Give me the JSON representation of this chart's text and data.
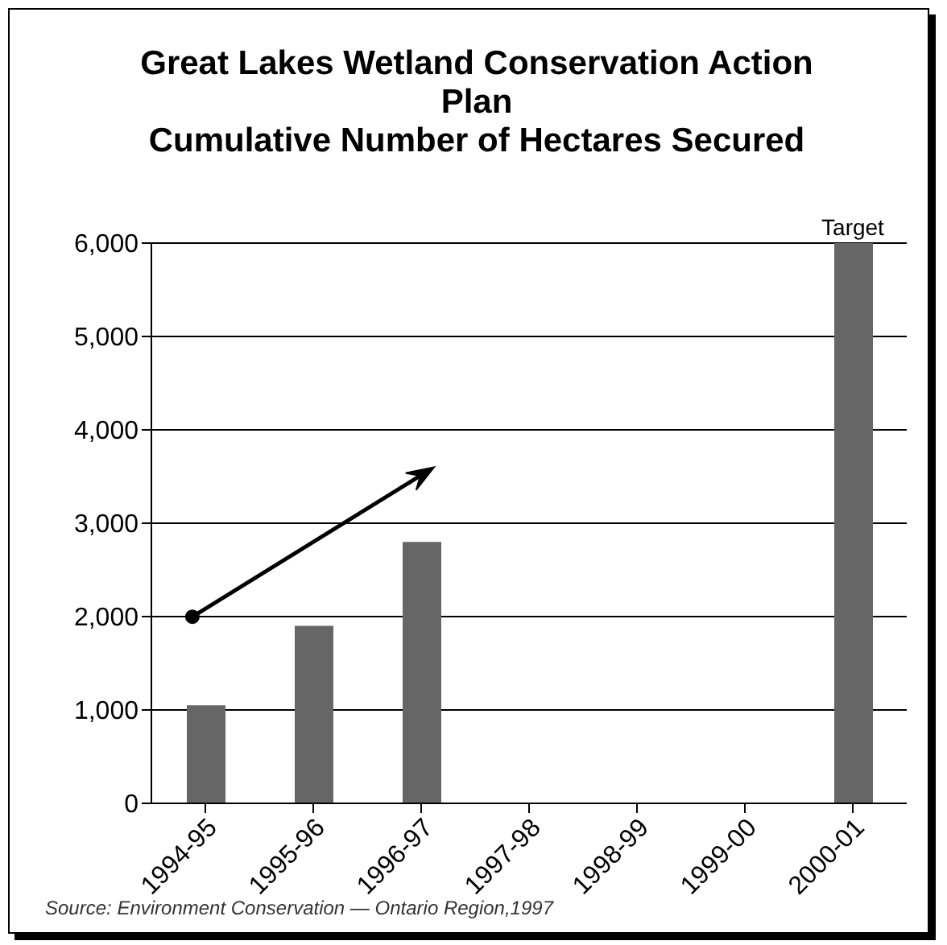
{
  "chart_data": {
    "type": "bar",
    "title": "Great Lakes Wetland Conservation Action Plan\nCumulative Number of Hectares Secured",
    "categories": [
      "1994-95",
      "1995-96",
      "1996-97",
      "1997-98",
      "1998-99",
      "1999-00",
      "2000-01"
    ],
    "values": [
      1050,
      1900,
      2800,
      null,
      null,
      null,
      6000
    ],
    "color": "#666666",
    "ylim": [
      0,
      6000
    ],
    "yticks": [
      {
        "value": 0,
        "label": "0"
      },
      {
        "value": 1000,
        "label": "1,000"
      },
      {
        "value": 2000,
        "label": "2,000"
      },
      {
        "value": 3000,
        "label": "3,000"
      },
      {
        "value": 4000,
        "label": "4,000"
      },
      {
        "value": 5000,
        "label": "5,000"
      },
      {
        "value": 6000,
        "label": "6,000"
      }
    ],
    "grid": "y",
    "annotations": [
      {
        "text": "Target",
        "x": "2000-01",
        "y": 6000
      },
      "Source: Environment Conservation — Ontario Region,1997"
    ]
  }
}
